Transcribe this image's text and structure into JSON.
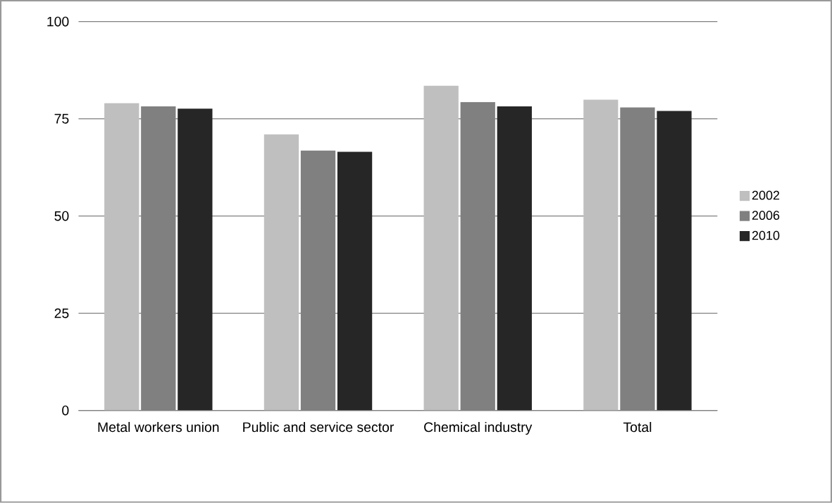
{
  "chart_data": {
    "type": "bar",
    "categories": [
      "Metal workers union",
      "Public and service sector",
      "Chemical industry",
      "Total"
    ],
    "series": [
      {
        "name": "2002",
        "color": "#bfbfbf",
        "values": [
          79.0,
          71.0,
          83.5,
          79.9
        ]
      },
      {
        "name": "2006",
        "color": "#808080",
        "values": [
          78.2,
          66.8,
          79.3,
          77.9
        ]
      },
      {
        "name": "2010",
        "color": "#262626",
        "values": [
          77.6,
          66.5,
          78.2,
          77.0
        ]
      }
    ],
    "ylim": [
      0,
      100
    ],
    "yticks": [
      0,
      25,
      50,
      75,
      100
    ],
    "grid": "y",
    "legend": "right"
  }
}
